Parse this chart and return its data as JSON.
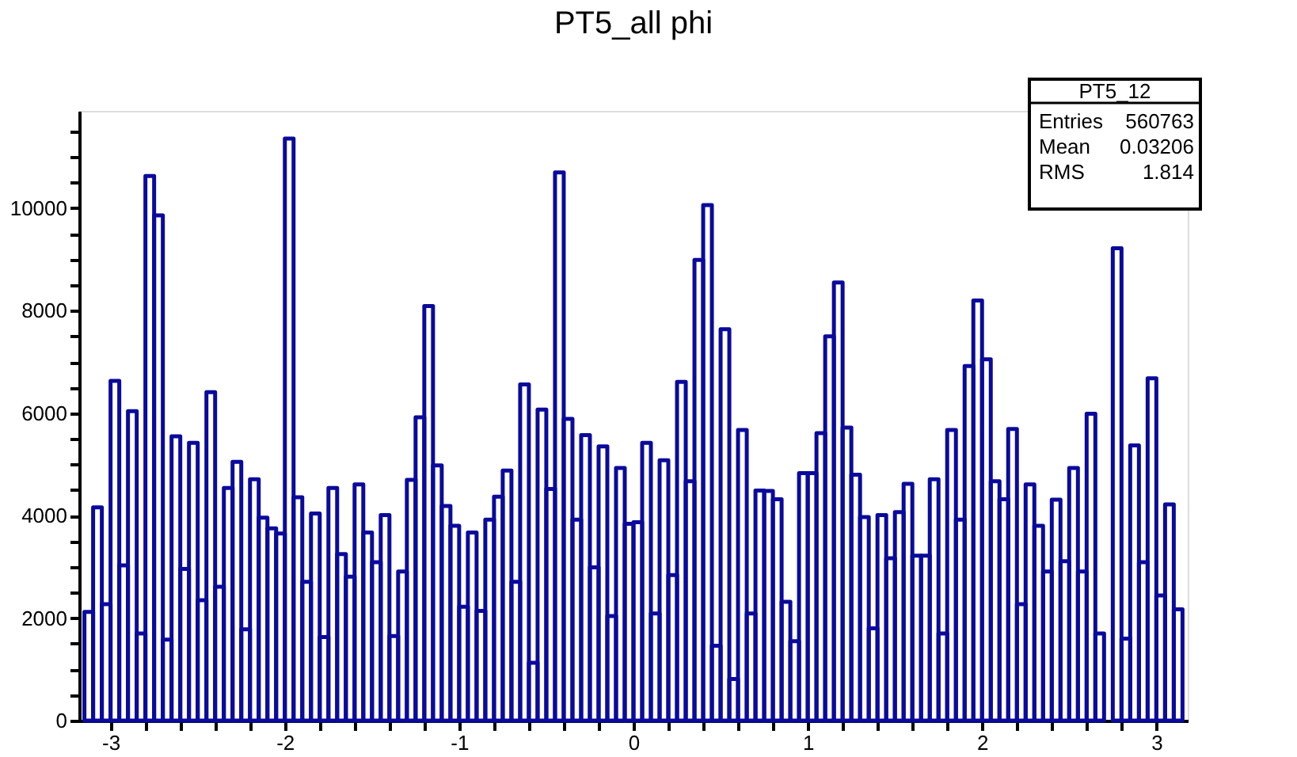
{
  "chart_data": {
    "type": "histogram",
    "title": "PT5_all phi",
    "bins": [
      -3.15,
      -3.1,
      -3.05,
      -3,
      -2.95,
      -2.9,
      -2.85,
      -2.8,
      -2.75,
      -2.7,
      -2.65,
      -2.6,
      -2.55,
      -2.5,
      -2.45,
      -2.4,
      -2.35,
      -2.3,
      -2.25,
      -2.2,
      -2.15,
      -2.1,
      -2.05,
      -2,
      -1.95,
      -1.9,
      -1.85,
      -1.8,
      -1.75,
      -1.7,
      -1.65,
      -1.6,
      -1.55,
      -1.5,
      -1.45,
      -1.4,
      -1.35,
      -1.3,
      -1.25,
      -1.2,
      -1.15,
      -1.1,
      -1.05,
      -1,
      -0.95,
      -0.9,
      -0.85,
      -0.8,
      -0.75,
      -0.7,
      -0.65,
      -0.6,
      -0.55,
      -0.5,
      -0.45,
      -0.4,
      -0.35,
      -0.3,
      -0.25,
      -0.2,
      -0.15,
      -0.1,
      -0.05,
      0,
      0.05,
      0.1,
      0.15,
      0.2,
      0.25,
      0.3,
      0.35,
      0.4,
      0.45,
      0.5,
      0.55,
      0.6,
      0.65,
      0.7,
      0.75,
      0.8,
      0.85,
      0.9,
      0.95,
      1,
      1.05,
      1.1,
      1.15,
      1.2,
      1.25,
      1.3,
      1.35,
      1.4,
      1.45,
      1.5,
      1.55,
      1.6,
      1.65,
      1.7,
      1.75,
      1.8,
      1.85,
      1.9,
      1.95,
      2,
      2.05,
      2.1,
      2.15,
      2.2,
      2.25,
      2.3,
      2.35,
      2.4,
      2.45,
      2.5,
      2.55,
      2.6,
      2.65,
      2.7,
      2.75,
      2.8,
      2.85,
      2.9,
      2.95,
      3,
      3.05,
      3.1,
      3.15
    ],
    "values": [
      2120,
      4160,
      2270,
      6630,
      3030,
      6040,
      1700,
      10630,
      9860,
      1580,
      5550,
      2960,
      5420,
      2350,
      6410,
      2610,
      4540,
      5050,
      1780,
      4710,
      3960,
      3750,
      3650,
      11360,
      4360,
      2710,
      4040,
      1630,
      4540,
      3250,
      2810,
      4610,
      3670,
      3090,
      4010,
      1650,
      2910,
      4700,
      5920,
      8090,
      4980,
      4190,
      3800,
      2220,
      3670,
      2140,
      3920,
      4370,
      4880,
      2710,
      6560,
      1130,
      6070,
      4520,
      10700,
      5890,
      3920,
      5570,
      2990,
      5350,
      2040,
      4930,
      3840,
      3870,
      5420,
      2090,
      5080,
      2840,
      6610,
      4670,
      8990,
      10060,
      1460,
      7640,
      810,
      5670,
      2090,
      4490,
      4480,
      4320,
      2320,
      1550,
      4830,
      4830,
      5610,
      7500,
      8550,
      5720,
      4800,
      3970,
      1800,
      4010,
      3170,
      4070,
      4620,
      3220,
      3220,
      4710,
      1700,
      5670,
      3920,
      6920,
      8200,
      7050,
      4670,
      4320,
      5690,
      2270,
      4610,
      3800,
      2910,
      4310,
      3110,
      4930,
      2910,
      5990,
      1700,
      null,
      9220,
      1600,
      5370,
      3090,
      6680,
      2440,
      4220,
      2170
    ],
    "color": "#0a0a9c",
    "xlim": [
      -3.18,
      3.18
    ],
    "xticks": [
      -3,
      {
        "value": -2.8,
        "label": null
      },
      {
        "value": -2.6,
        "label": null
      },
      {
        "value": -2.4,
        "label": null
      },
      {
        "value": -2.2,
        "label": null
      },
      -2,
      {
        "value": -1.8,
        "label": null
      },
      {
        "value": -1.6,
        "label": null
      },
      {
        "value": -1.4,
        "label": null
      },
      {
        "value": -1.2,
        "label": null
      },
      -1,
      {
        "value": -0.8,
        "label": null
      },
      {
        "value": -0.6,
        "label": null
      },
      {
        "value": -0.4,
        "label": null
      },
      {
        "value": -0.2,
        "label": null
      },
      0,
      {
        "value": 0.2,
        "label": null
      },
      {
        "value": 0.4,
        "label": null
      },
      {
        "value": 0.6,
        "label": null
      },
      {
        "value": 0.8,
        "label": null
      },
      1,
      {
        "value": 1.2,
        "label": null
      },
      {
        "value": 1.4,
        "label": null
      },
      {
        "value": 1.6,
        "label": null
      },
      {
        "value": 1.8,
        "label": null
      },
      2,
      {
        "value": 2.2,
        "label": null
      },
      {
        "value": 2.4,
        "label": null
      },
      {
        "value": 2.6,
        "label": null
      },
      {
        "value": 2.8,
        "label": null
      },
      3
    ],
    "ylim": [
      0,
      11900
    ],
    "yticks": [
      0,
      {
        "value": 500,
        "label": null
      },
      {
        "value": 1000,
        "label": null
      },
      {
        "value": 1500,
        "label": null
      },
      2000,
      {
        "value": 2500,
        "label": null
      },
      {
        "value": 3000,
        "label": null
      },
      {
        "value": 3500,
        "label": null
      },
      4000,
      {
        "value": 4500,
        "label": null
      },
      {
        "value": 5000,
        "label": null
      },
      {
        "value": 5500,
        "label": null
      },
      6000,
      {
        "value": 6500,
        "label": null
      },
      {
        "value": 7000,
        "label": null
      },
      {
        "value": 7500,
        "label": null
      },
      8000,
      {
        "value": 8500,
        "label": null
      },
      {
        "value": 9000,
        "label": null
      },
      {
        "value": 9500,
        "label": null
      },
      10000,
      {
        "value": 10500,
        "label": null
      },
      {
        "value": 11000,
        "label": null
      },
      {
        "value": 11500,
        "label": null
      }
    ],
    "grid": false,
    "annotations": [
      "PT5_12",
      "Entries",
      "560763",
      "Mean",
      "0.03206",
      "RMS",
      "1.814"
    ]
  }
}
